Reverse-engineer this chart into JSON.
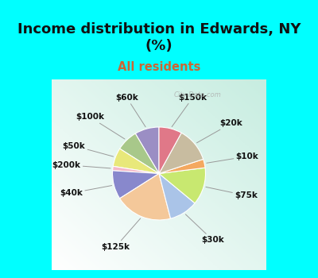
{
  "title": "Income distribution in Edwards, NY\n(%)",
  "subtitle": "All residents",
  "title_color": "#111111",
  "subtitle_color": "#cc6633",
  "bg_cyan": "#00ffff",
  "chart_bg_color": "#c8ede0",
  "labels": [
    "$60k",
    "$100k",
    "$50k",
    "$200k",
    "$40k",
    "$125k",
    "$30k",
    "$75k",
    "$10k",
    "$20k",
    "$150k"
  ],
  "values": [
    8.5,
    7.5,
    6.5,
    1.5,
    10.0,
    20.0,
    10.0,
    13.0,
    3.0,
    12.0,
    8.0
  ],
  "colors": [
    "#9b8ec4",
    "#a8c88a",
    "#e8e87a",
    "#f4b8c8",
    "#8888cc",
    "#f4c89a",
    "#aac4e8",
    "#c8e870",
    "#f4a860",
    "#c8bca0",
    "#e07888"
  ],
  "startangle": 90,
  "wedge_lw": 0.8,
  "wedge_ec": "#ffffff",
  "label_fontsize": 7.5,
  "title_fontsize": 13,
  "subtitle_fontsize": 10.5,
  "watermark": "City-Data.com"
}
